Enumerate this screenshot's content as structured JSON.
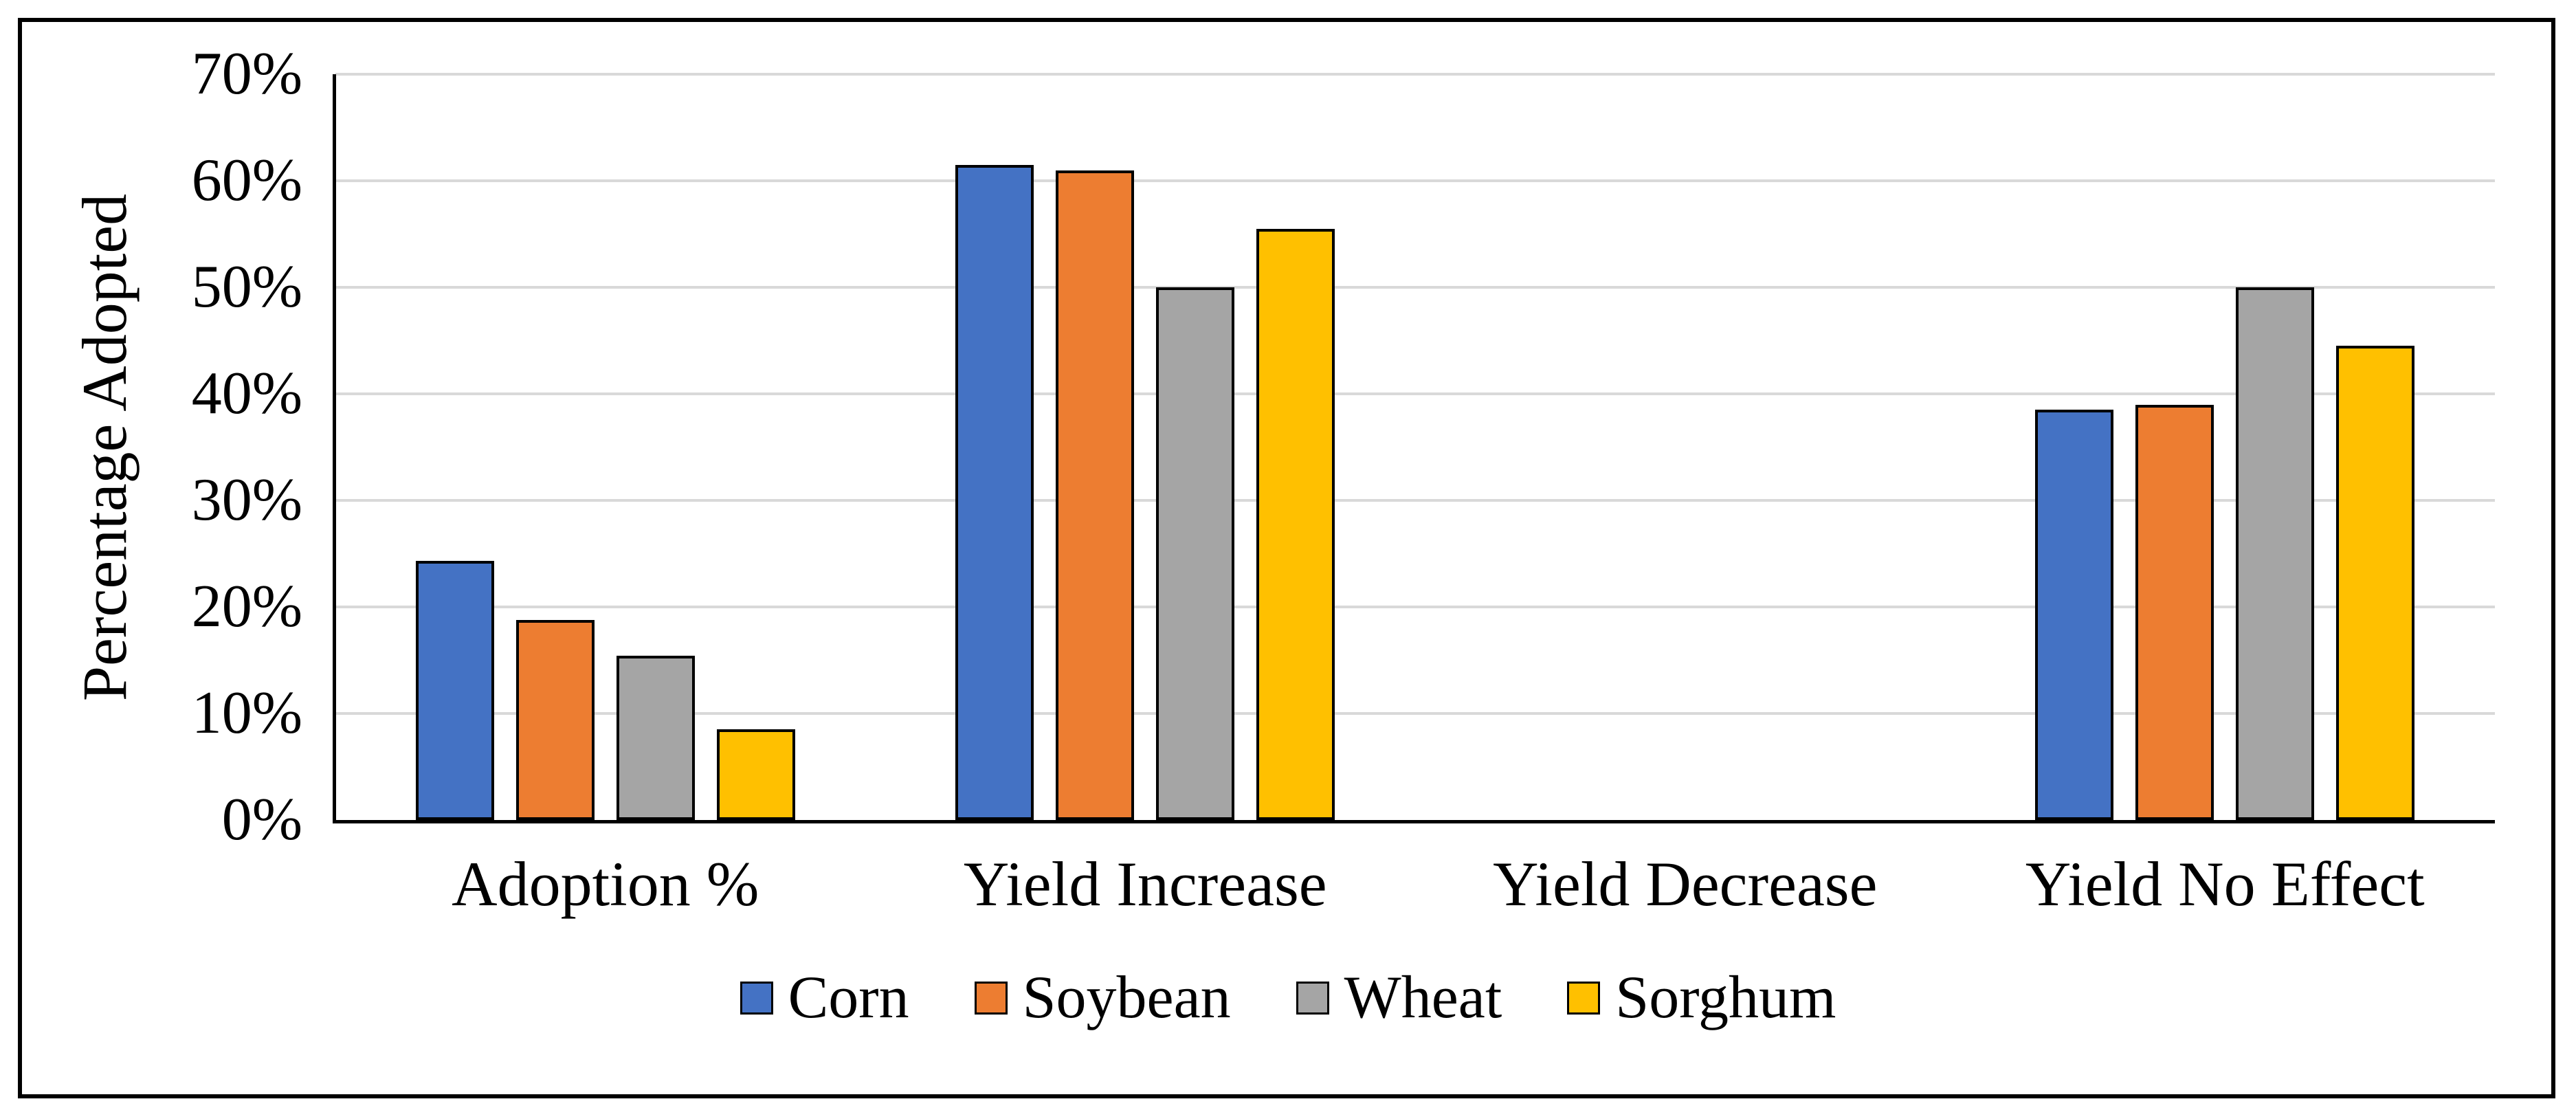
{
  "chart_data": {
    "type": "bar",
    "title": "",
    "ylabel": "Percentage Adopted",
    "xlabel": "",
    "categories": [
      "Adoption %",
      "Yield Increase",
      "Yield Decrease",
      "Yield No Effect"
    ],
    "series": [
      {
        "name": "Corn",
        "color": "#4472C4",
        "values": [
          24.3,
          61.5,
          0,
          38.5
        ]
      },
      {
        "name": "Soybean",
        "color": "#ED7D31",
        "values": [
          18.8,
          61.0,
          0,
          39.0
        ]
      },
      {
        "name": "Wheat",
        "color": "#A5A5A5",
        "values": [
          15.4,
          50.0,
          0,
          50.0
        ]
      },
      {
        "name": "Sorghum",
        "color": "#FFC000",
        "values": [
          8.5,
          55.5,
          0,
          44.5
        ]
      }
    ],
    "ylim": [
      0,
      70
    ],
    "ytick_labels": [
      "0%",
      "10%",
      "20%",
      "30%",
      "40%",
      "50%",
      "60%",
      "70%"
    ],
    "ytick_values": [
      0,
      10,
      20,
      30,
      40,
      50,
      60,
      70
    ],
    "grid": "horizontal",
    "gridline_color": "#D9D9D9",
    "axis_color": "#000000",
    "bar_border_color": "#000000",
    "legend_position": "bottom"
  }
}
